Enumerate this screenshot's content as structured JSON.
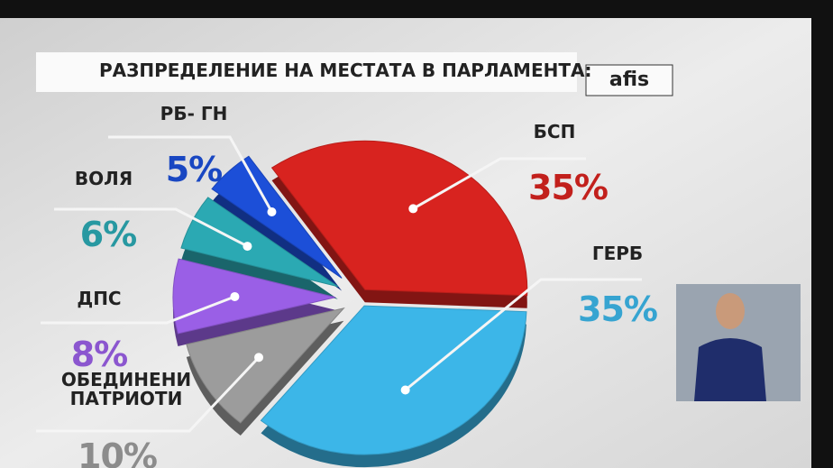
{
  "chart_data": {
    "type": "pie",
    "title": "РАЗПРЕДЕЛЕНИЕ НА МЕСТАТА В ПАРЛАМЕНТА:",
    "logo": "afis",
    "categories": [
      "БСП",
      "ГЕРБ",
      "ОБЕДИНЕНИ ПАТРИОТИ",
      "ДПС",
      "ВОЛЯ",
      "РБ- ГН"
    ],
    "values": [
      35,
      35,
      10,
      8,
      6,
      5
    ],
    "value_labels": [
      "35%",
      "35%",
      "10%",
      "8%",
      "6%",
      "5%"
    ],
    "colors": [
      "#d8231f",
      "#3cb6e8",
      "#9c9c9c",
      "#9a5fe6",
      "#2ba9b3",
      "#1c4fd8"
    ]
  }
}
